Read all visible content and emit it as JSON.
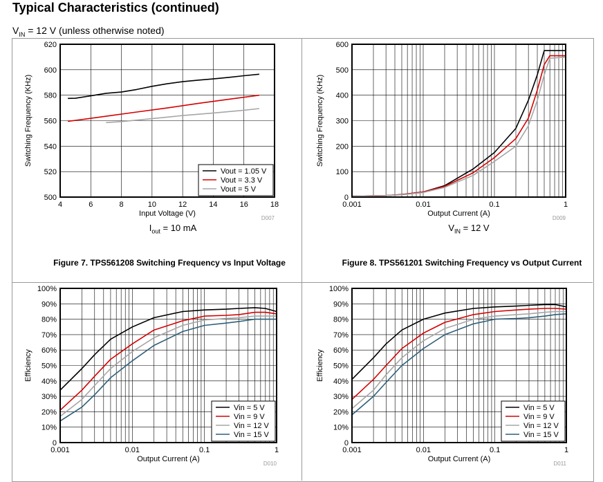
{
  "page": {
    "title": "Typical Characteristics (continued)",
    "condition": {
      "pre": "V",
      "sub": "IN",
      "post": " = 12 V (unless otherwise noted)"
    }
  },
  "captions": {
    "fig7": "Figure 7. TPS561208 Switching Frequency vs Input Voltage",
    "fig8": "Figure 8. TPS561201 Switching Frequency vs Output Current"
  },
  "notes": {
    "fig7": {
      "pre": "I",
      "sub": "out",
      "post": " = 10 mA"
    },
    "fig8": {
      "pre": "V",
      "sub": "IN",
      "post": " = 12 V"
    }
  },
  "colors": {
    "black": "#000000",
    "red": "#d40000",
    "gray": "#a6a6a6",
    "blue": "#2e5f7a"
  },
  "chart_data": [
    {
      "id": "c1",
      "type": "line",
      "xscale": "linear",
      "xlabel": "Input Voltage (V)",
      "ylabel": "Switching Frequency (KHz)",
      "tag": "D007",
      "xlim": [
        4,
        18
      ],
      "ylim": [
        500,
        620
      ],
      "xticks": [
        4,
        6,
        8,
        10,
        12,
        14,
        16,
        18
      ],
      "xticklabels": [
        "4",
        "6",
        "8",
        "10",
        "12",
        "14",
        "16",
        "18"
      ],
      "yticks": [
        500,
        520,
        540,
        560,
        580,
        600,
        620
      ],
      "yticklabels": [
        "500",
        "520",
        "540",
        "560",
        "580",
        "600",
        "620"
      ],
      "grid": true,
      "legend_position": "bottom-right",
      "series": [
        {
          "name": "Vout = 1.05 V",
          "color": "#000000",
          "x": [
            4.5,
            5,
            6,
            7,
            8,
            9,
            10,
            11,
            12,
            13,
            14,
            15,
            16,
            17
          ],
          "y": [
            577.5,
            577.6,
            579.5,
            581.5,
            582.5,
            584.5,
            587,
            589,
            590.6,
            591.8,
            592.8,
            594,
            595.3,
            596.5
          ]
        },
        {
          "name": "Vout = 3.3 V",
          "color": "#d40000",
          "x": [
            4.5,
            5,
            7,
            9,
            11,
            13,
            15,
            17
          ],
          "y": [
            559.5,
            560.2,
            563.5,
            566.8,
            570,
            573.5,
            576.8,
            580
          ]
        },
        {
          "name": "Vout = 5 V",
          "color": "#a6a6a6",
          "x": [
            7,
            8,
            10,
            12,
            14,
            16,
            17
          ],
          "y": [
            558.5,
            559.3,
            561.6,
            564,
            566,
            568.2,
            569.5
          ]
        }
      ]
    },
    {
      "id": "c2",
      "type": "line",
      "xscale": "log",
      "xlabel": "Output Current (A)",
      "ylabel": "Switching Frequency (KHz)",
      "tag": "D009",
      "xlim": [
        0.001,
        1
      ],
      "ylim": [
        0,
        600
      ],
      "xticks": [
        0.001,
        0.01,
        0.1,
        1
      ],
      "xticklabels": [
        "0.001",
        "0.01",
        "0.1",
        "1"
      ],
      "yticks": [
        0,
        100,
        200,
        300,
        400,
        500,
        600
      ],
      "yticklabels": [
        "0",
        "100",
        "200",
        "300",
        "400",
        "500",
        "600"
      ],
      "grid": true,
      "legend_position": "none",
      "series": [
        {
          "color": "#000000",
          "x": [
            0.001,
            0.003,
            0.005,
            0.01,
            0.02,
            0.05,
            0.1,
            0.2,
            0.3,
            0.4,
            0.5,
            0.7,
            1
          ],
          "y": [
            4,
            6,
            10,
            20,
            45,
            110,
            175,
            270,
            380,
            480,
            575,
            575,
            575
          ]
        },
        {
          "color": "#d40000",
          "x": [
            0.001,
            0.003,
            0.005,
            0.01,
            0.02,
            0.05,
            0.1,
            0.2,
            0.3,
            0.4,
            0.5,
            0.6,
            1
          ],
          "y": [
            4,
            6,
            10,
            20,
            42,
            95,
            155,
            230,
            310,
            420,
            520,
            555,
            555
          ]
        },
        {
          "color": "#a6a6a6",
          "x": [
            0.001,
            0.003,
            0.005,
            0.01,
            0.02,
            0.05,
            0.1,
            0.2,
            0.3,
            0.4,
            0.5,
            0.6,
            1
          ],
          "y": [
            4,
            6,
            9,
            18,
            38,
            85,
            140,
            200,
            280,
            380,
            480,
            545,
            550
          ]
        }
      ]
    },
    {
      "id": "c3",
      "type": "line",
      "xscale": "log",
      "xlabel": "Output Current (A)",
      "ylabel": "Efficiency",
      "tag": "D010",
      "xlim": [
        0.001,
        1
      ],
      "ylim": [
        0,
        100
      ],
      "xticks": [
        0.001,
        0.01,
        0.1,
        1
      ],
      "xticklabels": [
        "0.001",
        "0.01",
        "0.1",
        "1"
      ],
      "yticks": [
        0,
        10,
        20,
        30,
        40,
        50,
        60,
        70,
        80,
        90,
        100
      ],
      "yticklabels": [
        "0",
        "10%",
        "20%",
        "30%",
        "40%",
        "50%",
        "60%",
        "70%",
        "80%",
        "90%",
        "100%"
      ],
      "grid": true,
      "legend_position": "bottom-right",
      "series": [
        {
          "name": "Vin = 5 V",
          "color": "#000000",
          "x": [
            0.001,
            0.002,
            0.003,
            0.005,
            0.01,
            0.02,
            0.05,
            0.1,
            0.2,
            0.3,
            0.5,
            0.7,
            1
          ],
          "y": [
            34,
            48,
            57,
            67,
            75,
            81,
            85,
            86,
            86.5,
            87,
            87.5,
            87,
            85
          ]
        },
        {
          "name": "Vin = 9 V",
          "color": "#d40000",
          "x": [
            0.001,
            0.002,
            0.003,
            0.005,
            0.01,
            0.02,
            0.05,
            0.1,
            0.2,
            0.3,
            0.5,
            0.7,
            1
          ],
          "y": [
            21,
            34,
            43,
            54,
            64,
            73,
            79,
            82,
            82.5,
            83,
            84.5,
            84.5,
            83.5
          ]
        },
        {
          "name": "Vin = 12 V",
          "color": "#a6a6a6",
          "x": [
            0.001,
            0.002,
            0.003,
            0.005,
            0.01,
            0.02,
            0.05,
            0.1,
            0.2,
            0.3,
            0.5,
            0.7,
            1
          ],
          "y": [
            17,
            28,
            37,
            48,
            59,
            68,
            76,
            79.5,
            80.5,
            81,
            82,
            82,
            82
          ]
        },
        {
          "name": "Vin = 15 V",
          "color": "#2e5f7a",
          "x": [
            0.001,
            0.002,
            0.003,
            0.005,
            0.01,
            0.02,
            0.05,
            0.1,
            0.2,
            0.3,
            0.5,
            0.7,
            1
          ],
          "y": [
            14,
            23,
            31,
            42,
            53,
            63,
            72,
            76,
            77.5,
            78.5,
            80,
            80,
            80
          ]
        }
      ]
    },
    {
      "id": "c4",
      "type": "line",
      "xscale": "log",
      "xlabel": "Output Current (A)",
      "ylabel": "Efficiency",
      "tag": "D011",
      "xlim": [
        0.001,
        1
      ],
      "ylim": [
        0,
        100
      ],
      "xticks": [
        0.001,
        0.01,
        0.1,
        1
      ],
      "xticklabels": [
        "0.001",
        "0.01",
        "0.1",
        "1"
      ],
      "yticks": [
        0,
        10,
        20,
        30,
        40,
        50,
        60,
        70,
        80,
        90,
        100
      ],
      "yticklabels": [
        "0",
        "10%",
        "20%",
        "30%",
        "40%",
        "50%",
        "60%",
        "70%",
        "80%",
        "90%",
        "100%"
      ],
      "grid": true,
      "legend_position": "bottom-right",
      "series": [
        {
          "name": "Vin = 5 V",
          "color": "#000000",
          "x": [
            0.001,
            0.002,
            0.003,
            0.005,
            0.01,
            0.02,
            0.05,
            0.1,
            0.2,
            0.3,
            0.5,
            0.7,
            1
          ],
          "y": [
            41,
            55,
            64,
            73,
            80,
            84,
            87,
            88,
            88.5,
            89,
            89.5,
            89.5,
            88
          ]
        },
        {
          "name": "Vin = 9 V",
          "color": "#d40000",
          "x": [
            0.001,
            0.002,
            0.003,
            0.005,
            0.01,
            0.02,
            0.05,
            0.1,
            0.2,
            0.3,
            0.5,
            0.7,
            1
          ],
          "y": [
            28,
            41,
            50,
            61,
            71,
            78,
            83,
            85,
            86,
            86.5,
            87,
            87,
            86.5
          ]
        },
        {
          "name": "Vin = 12 V",
          "color": "#a6a6a6",
          "x": [
            0.001,
            0.002,
            0.003,
            0.005,
            0.01,
            0.02,
            0.05,
            0.1,
            0.2,
            0.3,
            0.5,
            0.7,
            1
          ],
          "y": [
            22,
            34,
            44,
            55,
            66,
            74,
            80,
            82,
            83,
            83.5,
            84.5,
            85,
            85
          ]
        },
        {
          "name": "Vin = 15 V",
          "color": "#2e5f7a",
          "x": [
            0.001,
            0.002,
            0.003,
            0.005,
            0.01,
            0.02,
            0.05,
            0.1,
            0.2,
            0.3,
            0.5,
            0.7,
            1
          ],
          "y": [
            18,
            30,
            39,
            50,
            61,
            70,
            77,
            80,
            80.5,
            81,
            82,
            83,
            83.5
          ]
        }
      ]
    }
  ]
}
